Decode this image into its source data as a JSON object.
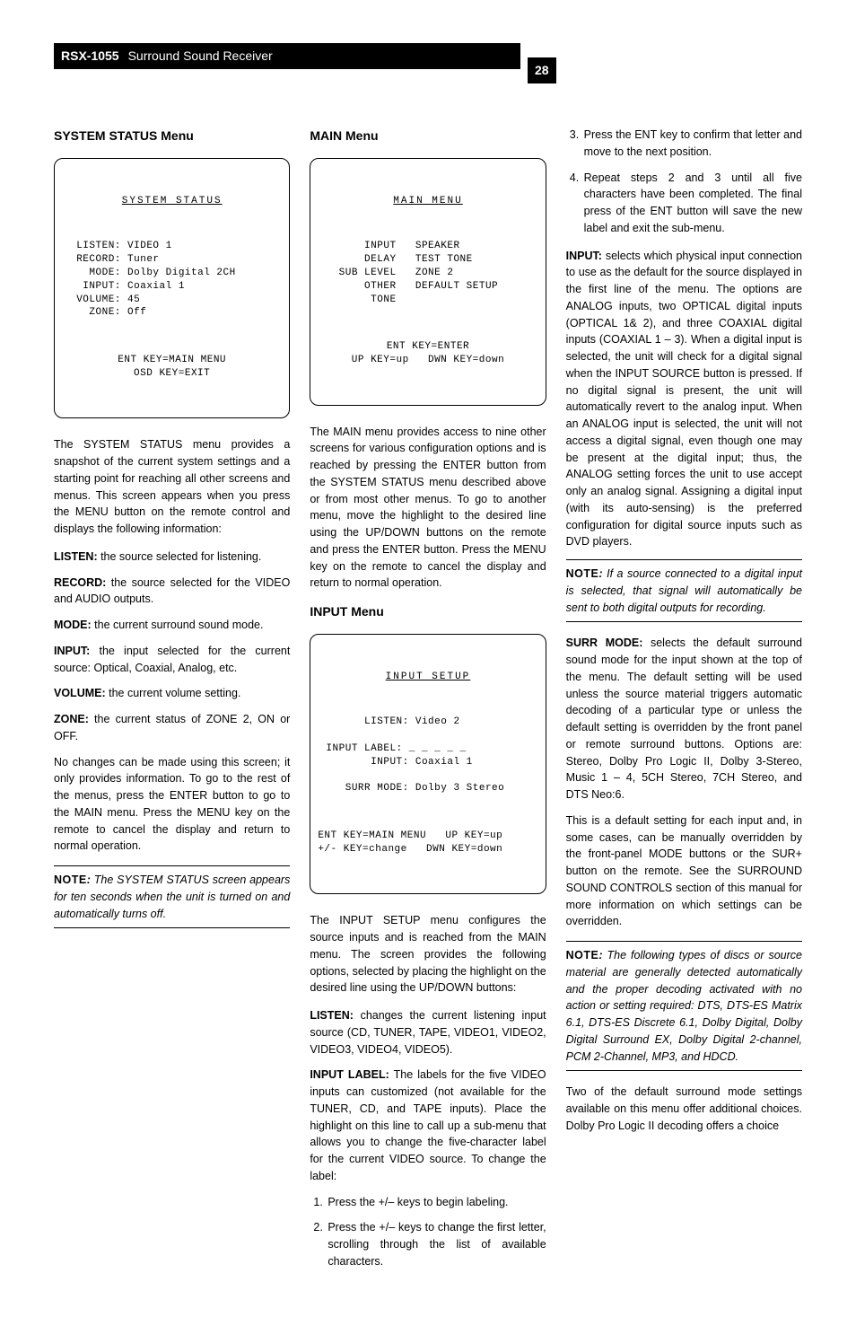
{
  "header": {
    "model": "RSX-1055",
    "product": "Surround Sound Receiver",
    "page": "28"
  },
  "col1": {
    "h_system_status": "SYSTEM STATUS Menu",
    "osd1": {
      "title": "SYSTEM STATUS",
      "body": "  LISTEN: VIDEO 1\n  RECORD: Tuner\n    MODE: Dolby Digital 2CH\n   INPUT: Coaxial 1\n  VOLUME: 45\n    ZONE: Off",
      "foot": "ENT KEY=MAIN MENU\nOSD KEY=EXIT"
    },
    "p_intro": "The SYSTEM STATUS menu provides a snapshot of the current system settings and a starting point for reaching all other screens and menus. This screen appears when you press the MENU button on the remote control and displays the following information:",
    "defs": [
      {
        "lead": "LISTEN:",
        "text": " the source selected for listening."
      },
      {
        "lead": "RECORD:",
        "text": " the source selected for the VIDEO and AUDIO outputs."
      },
      {
        "lead": "MODE:",
        "text": " the current surround sound mode."
      },
      {
        "lead": "INPUT:",
        "text": " the input selected for the current source: Optical, Coaxial, Analog, etc."
      },
      {
        "lead": "VOLUME:",
        "text": " the current volume setting."
      },
      {
        "lead": "ZONE:",
        "text": " the current status of ZONE 2, ON or OFF."
      }
    ],
    "p_nochange": "No changes can be made using this screen; it only provides information. To go to the rest of the menus, press the ENTER button to go to the MAIN menu. Press the MENU key on the remote to cancel the display and return to normal operation.",
    "note1": "The SYSTEM STATUS screen appears for ten seconds when the unit is turned on and automatically turns off."
  },
  "col2": {
    "h_main": "MAIN Menu",
    "osd_main": {
      "title": "MAIN MENU",
      "body": "       INPUT   SPEAKER\n       DELAY   TEST TONE\n   SUB LEVEL   ZONE 2\n       OTHER   DEFAULT SETUP\n        TONE",
      "foot": "ENT KEY=ENTER\nUP KEY=up   DWN KEY=down"
    },
    "p_main": "The MAIN menu provides access to nine other screens for various configuration options and is reached by pressing the ENTER button from the SYSTEM STATUS menu described above or from most other menus. To go to another menu, move the highlight to the desired line using the UP/DOWN buttons on the remote and press the ENTER button. Press the MENU key on the remote to cancel the display and return to normal operation.",
    "h_input": "INPUT Menu",
    "osd_input": {
      "title": "INPUT SETUP",
      "body": "       LISTEN: Video 2\n\n INPUT LABEL: _ _ _ _ _\n        INPUT: Coaxial 1\n\n    SURR MODE: Dolby 3 Stereo",
      "foot": "ENT KEY=MAIN MENU   UP KEY=up\n+/- KEY=change   DWN KEY=down"
    },
    "p_input_intro": "The INPUT SETUP menu configures the source inputs and is reached from the MAIN menu. The screen provides the following options, selected by placing the highlight on the desired line using the UP/DOWN buttons:",
    "def_listen": {
      "lead": "LISTEN:",
      "text": " changes the current listening input source (CD, TUNER, TAPE, VIDEO1, VIDEO2, VIDEO3, VIDEO4, VIDEO5)."
    },
    "def_label": {
      "lead": "INPUT LABEL:",
      "text": " The labels for the five VIDEO inputs can customized (not available for the TUNER, CD, and TAPE inputs). Place the highlight on this line to call up a sub-menu that allows you to change the five-character label for the current VIDEO source. To change the label:"
    },
    "steps12": [
      "Press the +/– keys to begin labeling.",
      "Press the +/– keys to change the first letter, scrolling through the list of available characters."
    ]
  },
  "col3": {
    "steps34": [
      "Press the ENT key to confirm that letter and move to the next position.",
      "Repeat steps 2 and 3 until all five characters have been completed. The final press of the ENT button will save the new label and exit the sub-menu."
    ],
    "def_input": {
      "lead": "INPUT:",
      "text": " selects which physical input connection to use as the default for the source displayed in the first line of the menu. The options are ANALOG inputs, two OPTICAL digital inputs (OPTICAL 1& 2), and three COAXIAL digital inputs (COAXIAL 1 – 3). When a digital input is selected, the unit will check for a digital signal when the INPUT SOURCE button is pressed. If no digital signal is present, the unit will automatically revert to the analog input. When an ANALOG input is selected, the unit will not access a digital signal, even though one may be present at the digital input; thus, the ANALOG setting forces the unit to use accept only an analog signal. Assigning a digital input (with its auto-sensing) is the preferred configuration for digital source inputs such as DVD players."
    },
    "note2": "If a source connected to a digital input is selected, that signal will automatically be sent to both digital outputs for recording.",
    "def_surr": {
      "lead": "SURR MODE:",
      "text": " selects the default surround sound mode for the input shown at the top of the menu. The default setting will be used unless the source material triggers automatic decoding of a particular type or unless the default setting is overridden by the front panel or remote surround buttons. Options are: Stereo, Dolby Pro Logic II, Dolby 3-Stereo, Music 1 – 4, 5CH Stereo, 7CH Stereo, and DTS Neo:6."
    },
    "p_default": "This is a default setting for each input and, in some cases, can be manually overridden by the front-panel MODE buttons or the SUR+ button on the remote. See the SURROUND SOUND CONTROLS section of this manual for more information on which settings can be overridden.",
    "note3": "The following types of discs or source material are generally detected automatically and the proper decoding activated with no action or setting required: DTS, DTS-ES Matrix 6.1, DTS-ES Discrete 6.1, Dolby Digital, Dolby Digital Surround EX, Dolby Digital 2-channel, PCM 2-Channel, MP3, and HDCD.",
    "p_two": "Two of the default surround mode settings available on this menu offer additional choices. Dolby Pro Logic II decoding offers a choice"
  },
  "labels": {
    "note": "NOTE",
    "colon": ":"
  }
}
